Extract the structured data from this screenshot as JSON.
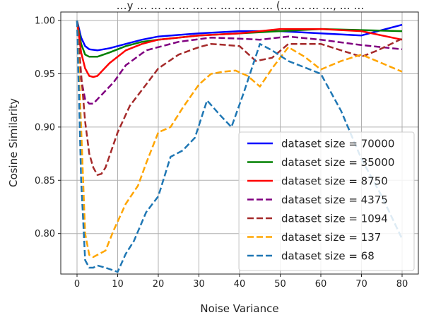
{
  "chart_data": {
    "type": "line",
    "title": "…y … … … … … … … … … … (… … … …, … …",
    "xlabel": "Noise Variance",
    "ylabel": "Cosine Similarity",
    "xlim": [
      -4,
      84
    ],
    "ylim": [
      0.762,
      1.008
    ],
    "xticks": [
      0,
      10,
      20,
      30,
      40,
      50,
      60,
      70,
      80
    ],
    "yticks": [
      0.8,
      0.85,
      0.9,
      0.95,
      1.0
    ],
    "ytick_labels": [
      "0.80",
      "0.85",
      "0.90",
      "0.95",
      "1.00"
    ],
    "grid": true,
    "legend_position": "lower-right",
    "series": [
      {
        "name": "dataset size = 70000",
        "color": "#0000ff",
        "dash": "solid",
        "x": [
          0,
          1,
          2,
          3,
          5,
          8,
          12,
          16,
          20,
          30,
          40,
          50,
          60,
          70,
          80
        ],
        "values": [
          1.0,
          0.984,
          0.976,
          0.973,
          0.972,
          0.974,
          0.978,
          0.982,
          0.985,
          0.988,
          0.99,
          0.99,
          0.988,
          0.986,
          0.996
        ]
      },
      {
        "name": "dataset size = 35000",
        "color": "#008000",
        "dash": "solid",
        "x": [
          0,
          1,
          2,
          3,
          5,
          8,
          12,
          16,
          20,
          30,
          40,
          50,
          60,
          70,
          80
        ],
        "values": [
          1.0,
          0.978,
          0.968,
          0.966,
          0.966,
          0.97,
          0.976,
          0.98,
          0.982,
          0.986,
          0.988,
          0.99,
          0.992,
          0.991,
          0.99
        ]
      },
      {
        "name": "dataset size = 8750",
        "color": "#ff0000",
        "dash": "solid",
        "x": [
          0,
          1,
          2,
          3,
          4,
          5,
          8,
          12,
          16,
          20,
          30,
          40,
          50,
          60,
          70,
          80
        ],
        "values": [
          1.0,
          0.97,
          0.955,
          0.948,
          0.947,
          0.948,
          0.96,
          0.972,
          0.978,
          0.982,
          0.986,
          0.988,
          0.992,
          0.992,
          0.99,
          0.982
        ]
      },
      {
        "name": "dataset size = 4375",
        "color": "#800080",
        "dash": "dashed",
        "x": [
          0,
          1,
          2,
          3,
          4,
          6,
          9,
          12,
          17,
          25,
          33,
          40,
          45,
          52,
          60,
          70,
          80
        ],
        "values": [
          1.0,
          0.945,
          0.926,
          0.922,
          0.922,
          0.93,
          0.942,
          0.958,
          0.972,
          0.98,
          0.984,
          0.983,
          0.982,
          0.985,
          0.982,
          0.977,
          0.973
        ]
      },
      {
        "name": "dataset size = 1094",
        "color": "#a52a2a",
        "dash": "dashed",
        "x": [
          0,
          1,
          2,
          3,
          4,
          5,
          6,
          7,
          10,
          13,
          17,
          20,
          25,
          30,
          33,
          37,
          40,
          44,
          48,
          52,
          56,
          60,
          65,
          70,
          74,
          80
        ],
        "values": [
          1.0,
          0.95,
          0.905,
          0.875,
          0.862,
          0.855,
          0.856,
          0.862,
          0.895,
          0.92,
          0.94,
          0.955,
          0.968,
          0.975,
          0.978,
          0.977,
          0.976,
          0.962,
          0.965,
          0.978,
          0.978,
          0.978,
          0.972,
          0.966,
          0.972,
          0.983
        ]
      },
      {
        "name": "dataset size = 137",
        "color": "#ffa500",
        "dash": "dashed",
        "x": [
          0,
          1,
          2,
          3,
          4,
          5,
          7,
          9,
          12,
          15,
          17,
          20,
          23,
          26,
          30,
          33,
          36,
          39,
          42,
          45,
          48,
          52,
          56,
          60,
          65,
          70,
          75,
          80
        ],
        "values": [
          1.0,
          0.9,
          0.8,
          0.78,
          0.778,
          0.78,
          0.784,
          0.803,
          0.828,
          0.845,
          0.866,
          0.895,
          0.9,
          0.918,
          0.94,
          0.95,
          0.952,
          0.953,
          0.948,
          0.938,
          0.955,
          0.975,
          0.966,
          0.954,
          0.962,
          0.968,
          0.96,
          0.952
        ]
      },
      {
        "name": "dataset size = 68",
        "color": "#1f77b4",
        "dash": "dashed",
        "x": [
          0,
          1,
          2,
          3,
          4,
          5,
          7,
          10,
          12,
          14,
          17,
          20,
          23,
          26,
          29,
          32,
          35,
          38,
          41,
          45,
          48,
          52,
          56,
          60,
          65,
          70,
          75,
          80
        ],
        "values": [
          1.0,
          0.85,
          0.775,
          0.768,
          0.768,
          0.77,
          0.768,
          0.764,
          0.781,
          0.793,
          0.82,
          0.835,
          0.872,
          0.878,
          0.89,
          0.925,
          0.912,
          0.9,
          0.932,
          0.978,
          0.972,
          0.962,
          0.956,
          0.95,
          0.915,
          0.87,
          0.835,
          0.795
        ]
      }
    ]
  }
}
